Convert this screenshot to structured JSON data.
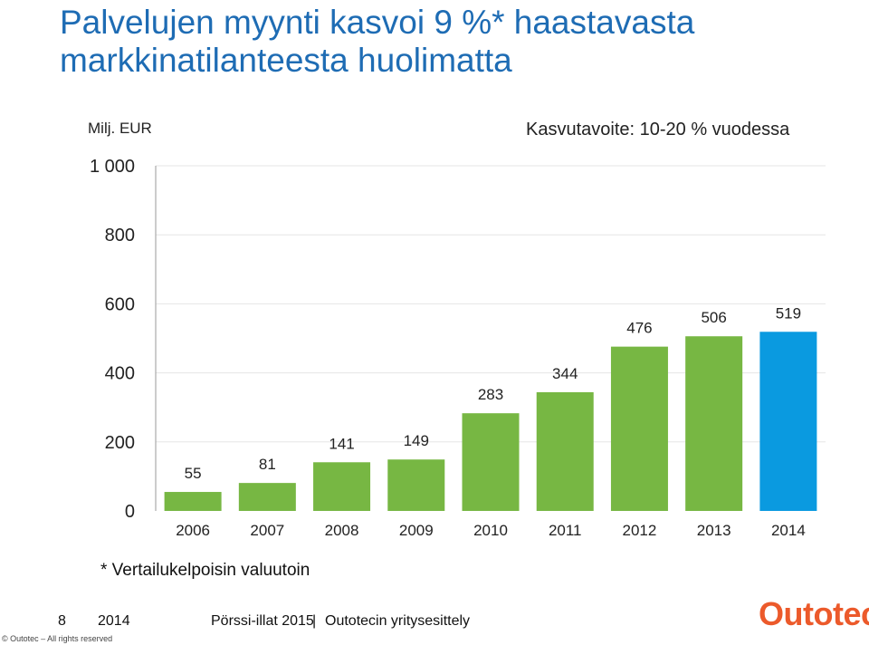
{
  "title": {
    "line1": "Palvelujen myynti kasvoi 9 %* haastavasta",
    "line2": "markkinatilanteesta huolimatta"
  },
  "unit_label": "Milj. EUR",
  "goal_note": "Kasvutavoite: 10-20 % vuodessa",
  "footnote": "* Vertailukelpoisin valuutoin",
  "footer": {
    "page_number": "8",
    "year": "2014",
    "event": "Pörssi-illat 2015",
    "separator": "|",
    "deck": "Outotecin yritysesittely"
  },
  "copyright": "© Outotec – All rights reserved",
  "logo_text": "Outotec",
  "colors": {
    "green": "#77b743",
    "blue": "#0a9ae0",
    "title": "#1e6cb4",
    "logo": "#ec5a2b"
  },
  "chart_data": {
    "type": "bar",
    "categories": [
      "2006",
      "2007",
      "2008",
      "2009",
      "2010",
      "2011",
      "2012",
      "2013",
      "2014"
    ],
    "values": [
      55,
      81,
      141,
      149,
      283,
      344,
      476,
      506,
      519
    ],
    "bar_colors": [
      "#77b743",
      "#77b743",
      "#77b743",
      "#77b743",
      "#77b743",
      "#77b743",
      "#77b743",
      "#77b743",
      "#0a9ae0"
    ],
    "ylim": [
      0,
      1000
    ],
    "yticks": [
      0,
      200,
      400,
      600,
      800,
      1000
    ],
    "ytick_labels": [
      "0",
      "200",
      "400",
      "600",
      "800",
      "1 000"
    ],
    "ylabel": "Milj. EUR",
    "xlabel": "",
    "grid": false,
    "legend": "none"
  }
}
